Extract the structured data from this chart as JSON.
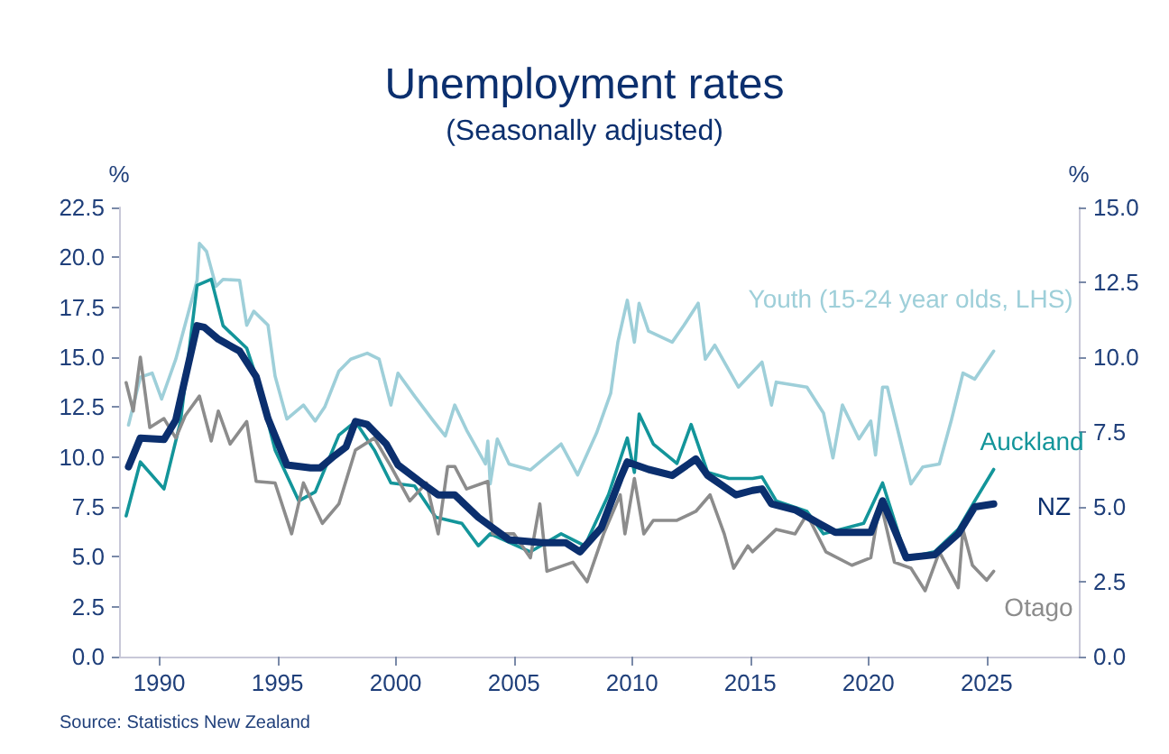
{
  "chart_data": {
    "type": "line",
    "title": "Unemployment rates",
    "subtitle": "(Seasonally adjusted)",
    "ylabel": "%",
    "y2label": "%",
    "annotations": [
      "Source: Statistics New Zealand"
    ],
    "xlim": [
      1988.3,
      2028.9
    ],
    "xticks": [
      1990,
      1995,
      2000,
      2005,
      2010,
      2015,
      2020,
      2025
    ],
    "ylim": [
      0,
      22.5
    ],
    "yticks": [
      {
        "value": 0,
        "label": "0.0"
      },
      {
        "value": 2.5,
        "label": "2.5"
      },
      {
        "value": 5,
        "label": "5.0"
      },
      {
        "value": 7.5,
        "label": "7.5"
      },
      {
        "value": 10,
        "label": "10.0"
      },
      {
        "value": 12.5,
        "label": "12.5"
      },
      {
        "value": 15,
        "label": "15.0"
      },
      {
        "value": 17.5,
        "label": "17.5"
      },
      {
        "value": 20,
        "label": "20.0"
      },
      {
        "value": 22.5,
        "label": "22.5"
      }
    ],
    "y2lim": [
      0,
      15
    ],
    "y2ticks": [
      {
        "value": 0,
        "label": "0.0"
      },
      {
        "value": 2.5,
        "label": "2.5"
      },
      {
        "value": 5,
        "label": "5.0"
      },
      {
        "value": 7.5,
        "label": "7.5"
      },
      {
        "value": 10,
        "label": "10.0"
      },
      {
        "value": 12.5,
        "label": "12.5"
      },
      {
        "value": 15,
        "label": "15.0"
      }
    ],
    "grid": false,
    "legend": false,
    "marker": "none",
    "line_style": "solid",
    "series": [
      {
        "name": "Youth (15-24 year olds, LHS)",
        "color": "#9ecfd9",
        "axis": "y",
        "x": [
          1988.7,
          1989.2,
          1989.7,
          1990.1,
          1990.7,
          1991.6,
          1991.7,
          1992.0,
          1992.4,
          1992.7,
          1993.4,
          1993.7,
          1994.0,
          1994.6,
          1994.9,
          1995.4,
          1996.1,
          1996.6,
          1997.0,
          1997.6,
          1998.1,
          1998.8,
          1999.3,
          1999.8,
          2000.1,
          2000.8,
          2001.6,
          2002.1,
          2002.5,
          2003.0,
          2003.8,
          2003.9,
          2004.0,
          2004.3,
          2004.8,
          2005.7,
          2007.0,
          2007.7,
          2008.5,
          2009.1,
          2009.4,
          2009.8,
          2010.1,
          2010.3,
          2010.7,
          2011.7,
          2012.2,
          2012.8,
          2013.1,
          2013.5,
          2014.5,
          2015.5,
          2015.9,
          2016.1,
          2017.4,
          2018.1,
          2018.5,
          2018.9,
          2019.6,
          2020.1,
          2020.3,
          2020.6,
          2020.8,
          2021.8,
          2022.3,
          2023.0,
          2023.5,
          2024.0,
          2024.5,
          2025.3
        ],
        "values": [
          11.6,
          14.0,
          14.2,
          12.9,
          14.9,
          18.85,
          20.7,
          20.3,
          18.55,
          18.9,
          18.85,
          16.6,
          17.3,
          16.6,
          14.05,
          11.9,
          12.6,
          11.8,
          12.5,
          14.3,
          14.9,
          15.2,
          14.9,
          12.6,
          14.2,
          13.05,
          11.8,
          11.05,
          12.6,
          11.35,
          9.65,
          10.8,
          8.65,
          10.9,
          9.65,
          9.35,
          10.65,
          9.1,
          11.2,
          13.2,
          15.75,
          17.85,
          15.75,
          17.7,
          16.3,
          15.75,
          16.6,
          17.7,
          14.9,
          15.6,
          13.5,
          14.75,
          12.6,
          13.75,
          13.5,
          12.2,
          9.95,
          12.6,
          10.9,
          11.8,
          10.1,
          13.5,
          13.5,
          8.65,
          9.5,
          9.65,
          11.8,
          14.2,
          13.9,
          15.3
        ]
      },
      {
        "name": "Auckland",
        "color": "#13959a",
        "axis": "y2",
        "x": [
          1988.6,
          1989.2,
          1990.2,
          1990.9,
          1991.6,
          1992.2,
          1992.7,
          1993.7,
          1994.1,
          1994.9,
          1995.9,
          1996.6,
          1997.6,
          1998.3,
          1999.1,
          1999.8,
          2000.8,
          2001.7,
          2002.8,
          2003.5,
          2004.0,
          2005.7,
          2007.0,
          2008.0,
          2009.0,
          2009.8,
          2010.1,
          2010.3,
          2010.9,
          2011.9,
          2012.5,
          2013.2,
          2014.1,
          2015.1,
          2015.5,
          2016.1,
          2017.4,
          2018.1,
          2019.8,
          2020.6,
          2021.6,
          2022.8,
          2023.8,
          2024.5,
          2025.3
        ],
        "values": [
          4.7,
          6.5,
          5.6,
          7.85,
          12.4,
          12.6,
          11.05,
          10.3,
          9.35,
          6.9,
          5.2,
          5.5,
          7.4,
          7.85,
          6.9,
          5.8,
          5.7,
          4.65,
          4.45,
          3.7,
          4.1,
          3.5,
          4.1,
          3.7,
          5.4,
          7.3,
          6.15,
          8.1,
          7.1,
          6.45,
          7.75,
          6.15,
          5.95,
          5.95,
          6.0,
          5.2,
          4.85,
          4.1,
          4.45,
          5.8,
          3.3,
          3.5,
          4.25,
          5.2,
          6.25
        ]
      },
      {
        "name": "NZ",
        "color": "#0b2f6e",
        "axis": "y2",
        "x": [
          1988.7,
          1989.2,
          1990.2,
          1990.7,
          1991.6,
          1991.9,
          1992.5,
          1993.4,
          1994.1,
          1994.6,
          1995.4,
          1996.4,
          1996.8,
          1997.4,
          1997.9,
          1998.3,
          1998.8,
          1999.6,
          2000.1,
          2001.1,
          2001.8,
          2002.5,
          2003.5,
          2004.8,
          2006.2,
          2007.2,
          2007.8,
          2008.7,
          2009.5,
          2009.8,
          2010.7,
          2011.7,
          2012.7,
          2013.2,
          2014.4,
          2015.1,
          2015.5,
          2015.9,
          2016.9,
          2017.9,
          2018.6,
          2020.1,
          2020.6,
          2021.1,
          2021.6,
          2022.8,
          2023.8,
          2024.5,
          2025.3
        ],
        "values": [
          6.34,
          7.3,
          7.25,
          7.9,
          11.05,
          11.0,
          10.6,
          10.2,
          9.35,
          7.95,
          6.4,
          6.3,
          6.3,
          6.7,
          7.0,
          7.85,
          7.75,
          7.1,
          6.4,
          5.8,
          5.4,
          5.4,
          4.65,
          3.9,
          3.8,
          3.8,
          3.5,
          4.3,
          5.95,
          6.5,
          6.25,
          6.05,
          6.6,
          6.05,
          5.4,
          5.55,
          5.6,
          5.1,
          4.9,
          4.45,
          4.15,
          4.15,
          5.2,
          4.25,
          3.3,
          3.4,
          4.1,
          5.0,
          5.1
        ]
      },
      {
        "name": "Otago",
        "color": "#8c8c8c",
        "axis": "y2",
        "x": [
          1988.6,
          1988.9,
          1989.2,
          1989.6,
          1990.2,
          1990.7,
          1991.1,
          1991.7,
          1992.2,
          1992.5,
          1993.0,
          1993.7,
          1994.1,
          1994.9,
          1995.6,
          1996.1,
          1996.9,
          1997.6,
          1998.3,
          1999.1,
          1999.8,
          2000.6,
          2001.3,
          2001.8,
          2002.2,
          2002.5,
          2003.0,
          2003.9,
          2004.1,
          2005.0,
          2005.7,
          2006.1,
          2006.4,
          2007.5,
          2008.1,
          2008.8,
          2009.5,
          2009.7,
          2010.1,
          2010.5,
          2010.9,
          2011.9,
          2012.7,
          2013.3,
          2013.9,
          2014.3,
          2014.9,
          2015.1,
          2016.1,
          2016.9,
          2017.4,
          2018.2,
          2019.3,
          2020.1,
          2020.5,
          2021.1,
          2021.8,
          2022.4,
          2023.0,
          2023.8,
          2024.0,
          2024.4,
          2025.0,
          2025.3
        ],
        "values": [
          9.15,
          8.2,
          10.0,
          7.65,
          7.95,
          7.3,
          8.05,
          8.7,
          7.2,
          8.2,
          7.1,
          7.85,
          5.85,
          5.8,
          4.1,
          5.8,
          4.45,
          5.1,
          6.9,
          7.3,
          6.35,
          5.2,
          5.8,
          4.1,
          6.35,
          6.35,
          5.6,
          5.85,
          4.1,
          4.1,
          3.3,
          5.1,
          2.85,
          3.15,
          2.5,
          4.1,
          5.4,
          4.1,
          5.95,
          4.1,
          4.55,
          4.55,
          4.85,
          5.4,
          4.1,
          2.95,
          3.7,
          3.5,
          4.25,
          4.1,
          4.75,
          3.5,
          3.05,
          3.3,
          5.2,
          3.15,
          2.95,
          2.2,
          3.5,
          2.3,
          4.25,
          3.05,
          2.55,
          2.85
        ]
      }
    ]
  }
}
